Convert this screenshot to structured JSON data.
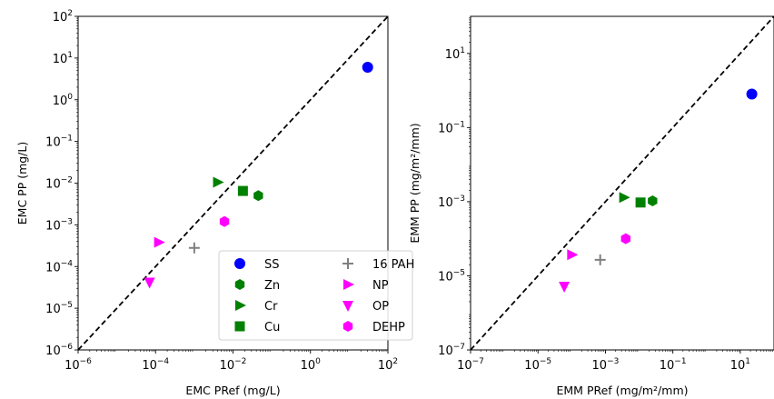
{
  "chart_data": [
    {
      "type": "scatter",
      "title": "",
      "xlabel": "EMC PRef (mg/L)",
      "ylabel": "EMC PP (mg/L)",
      "xscale": "log",
      "yscale": "log",
      "xlim": [
        1e-06,
        100
      ],
      "ylim": [
        1e-06,
        100
      ],
      "xticks": [
        {
          "base": "10",
          "exp": "−6",
          "v": 1e-06
        },
        {
          "base": "10",
          "exp": "−4",
          "v": 0.0001
        },
        {
          "base": "10",
          "exp": "−2",
          "v": 0.01
        },
        {
          "base": "10",
          "exp": "0",
          "v": 1
        },
        {
          "base": "10",
          "exp": "2",
          "v": 100
        }
      ],
      "yticks": [
        {
          "base": "10",
          "exp": "−6",
          "v": 1e-06
        },
        {
          "base": "10",
          "exp": "−5",
          "v": 1e-05
        },
        {
          "base": "10",
          "exp": "−4",
          "v": 0.0001
        },
        {
          "base": "10",
          "exp": "−3",
          "v": 0.001
        },
        {
          "base": "10",
          "exp": "−2",
          "v": 0.01
        },
        {
          "base": "10",
          "exp": "−1",
          "v": 0.1
        },
        {
          "base": "10",
          "exp": "0",
          "v": 1
        },
        {
          "base": "10",
          "exp": "1",
          "v": 10
        },
        {
          "base": "10",
          "exp": "2",
          "v": 100
        }
      ],
      "reference_line": "1:1 dashed",
      "grid": false,
      "legend": {
        "placement": "lower-right",
        "columns": 2,
        "entries": [
          {
            "name": "SS",
            "color": "#0000ff",
            "marker": "circle"
          },
          {
            "name": "Zn",
            "color": "#008000",
            "marker": "hexagon"
          },
          {
            "name": "Cr",
            "color": "#008000",
            "marker": "triangle-right"
          },
          {
            "name": "Cu",
            "color": "#008000",
            "marker": "square"
          },
          {
            "name": "16 PAH",
            "color": "#808080",
            "marker": "plus"
          },
          {
            "name": "NP",
            "color": "#ff00ff",
            "marker": "triangle-right"
          },
          {
            "name": "OP",
            "color": "#ff00ff",
            "marker": "triangle-down"
          },
          {
            "name": "DEHP",
            "color": "#ff00ff",
            "marker": "hexagon"
          }
        ]
      },
      "series": [
        {
          "name": "SS",
          "x": 30,
          "y": 6
        },
        {
          "name": "Zn",
          "x": 0.045,
          "y": 0.005
        },
        {
          "name": "Cr",
          "x": 0.004,
          "y": 0.0105
        },
        {
          "name": "Cu",
          "x": 0.018,
          "y": 0.0065
        },
        {
          "name": "16 PAH",
          "x": 0.001,
          "y": 0.00028
        },
        {
          "name": "NP",
          "x": 0.00012,
          "y": 0.00038
        },
        {
          "name": "OP",
          "x": 7e-05,
          "y": 4.2e-05
        },
        {
          "name": "DEHP",
          "x": 0.006,
          "y": 0.0012
        }
      ]
    },
    {
      "type": "scatter",
      "title": "",
      "xlabel": "EMM PRef (mg/m²/mm)",
      "ylabel": "EMM PP (mg/m²/mm)",
      "xscale": "log",
      "yscale": "log",
      "xlim": [
        1e-07,
        100
      ],
      "ylim": [
        1e-07,
        100
      ],
      "xticks": [
        {
          "base": "10",
          "exp": "−7",
          "v": 1e-07
        },
        {
          "base": "10",
          "exp": "−5",
          "v": 1e-05
        },
        {
          "base": "10",
          "exp": "−3",
          "v": 0.001
        },
        {
          "base": "10",
          "exp": "−1",
          "v": 0.1
        },
        {
          "base": "10",
          "exp": "1",
          "v": 10
        }
      ],
      "yticks": [
        {
          "base": "10",
          "exp": "−7",
          "v": 1e-07
        },
        {
          "base": "10",
          "exp": "−5",
          "v": 1e-05
        },
        {
          "base": "10",
          "exp": "−3",
          "v": 0.001
        },
        {
          "base": "10",
          "exp": "−1",
          "v": 0.1
        },
        {
          "base": "10",
          "exp": "1",
          "v": 10
        }
      ],
      "reference_line": "1:1 dashed",
      "grid": false,
      "series": [
        {
          "name": "SS",
          "x": 22,
          "y": 0.8
        },
        {
          "name": "Zn",
          "x": 0.025,
          "y": 0.00105
        },
        {
          "name": "Cr",
          "x": 0.0035,
          "y": 0.0013
        },
        {
          "name": "Cu",
          "x": 0.011,
          "y": 0.00095
        },
        {
          "name": "16 PAH",
          "x": 0.0007,
          "y": 2.7e-05
        },
        {
          "name": "NP",
          "x": 0.0001,
          "y": 3.7e-05
        },
        {
          "name": "OP",
          "x": 6e-05,
          "y": 5.2e-06
        },
        {
          "name": "DEHP",
          "x": 0.004,
          "y": 0.0001
        }
      ]
    }
  ]
}
